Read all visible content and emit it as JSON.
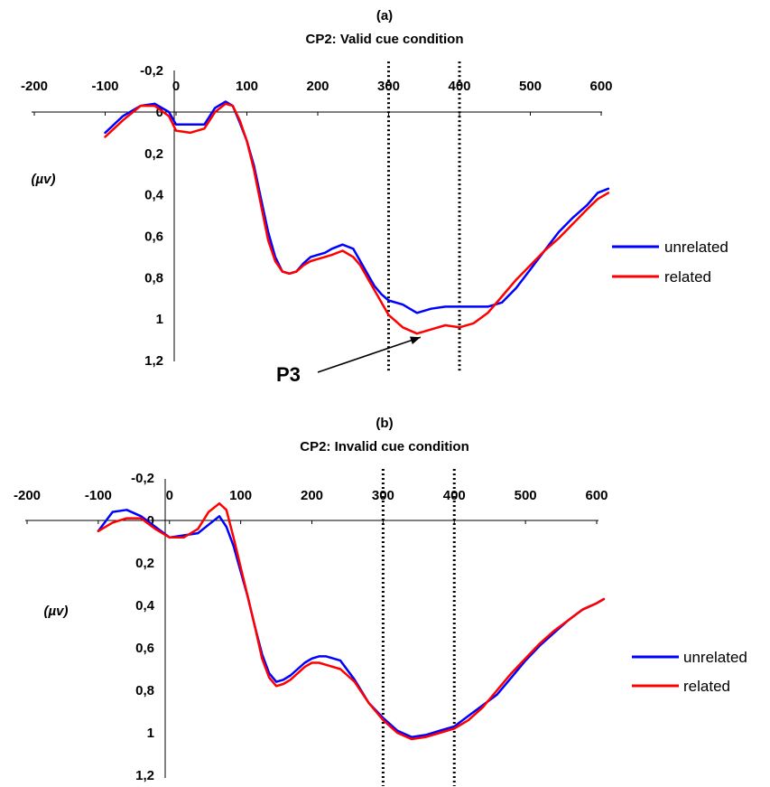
{
  "figure": {
    "label_color_unrelated": "#0000ff",
    "label_color_related": "#ff0000"
  },
  "chart_data": [
    {
      "type": "line",
      "panel_label": "(a)",
      "title": "CP2: Valid cue condition",
      "ylabel": "(µv)",
      "xlabel": "",
      "xlim": [
        -200,
        600
      ],
      "ylim": [
        1.2,
        -0.2
      ],
      "y_inverted": true,
      "x_tick_values": [
        -200,
        -100,
        0,
        100,
        200,
        300,
        400,
        500,
        600
      ],
      "x_tick_labels": [
        "-200",
        "-100",
        "0",
        "100",
        "200",
        "300",
        "400",
        "500",
        "600"
      ],
      "y_tick_values": [
        -0.2,
        0,
        0.2,
        0.4,
        0.6,
        0.8,
        1,
        1.2
      ],
      "y_tick_labels": [
        "-0,2",
        "0",
        "0,2",
        "0,4",
        "0,6",
        "0,8",
        "1",
        "1,2"
      ],
      "vertical_markers": [
        300,
        400
      ],
      "grid": false,
      "legend_position": "right",
      "annotation": {
        "text": "P3",
        "arrow_to": [
          345,
          1.07
        ]
      },
      "series": [
        {
          "name": "unrelated",
          "color": "#0000ff",
          "x": [
            -100,
            -75,
            -50,
            -30,
            -10,
            0,
            20,
            40,
            55,
            70,
            80,
            90,
            100,
            110,
            120,
            130,
            140,
            150,
            160,
            170,
            180,
            190,
            200,
            210,
            220,
            235,
            250,
            260,
            270,
            280,
            290,
            300,
            320,
            340,
            360,
            380,
            400,
            420,
            440,
            460,
            480,
            500,
            520,
            540,
            560,
            580,
            595,
            610
          ],
          "y": [
            0.1,
            0.02,
            -0.03,
            -0.04,
            0.0,
            0.06,
            0.06,
            0.06,
            -0.02,
            -0.05,
            -0.03,
            0.05,
            0.14,
            0.26,
            0.42,
            0.58,
            0.7,
            0.77,
            0.78,
            0.77,
            0.73,
            0.7,
            0.69,
            0.68,
            0.66,
            0.64,
            0.66,
            0.72,
            0.78,
            0.84,
            0.88,
            0.91,
            0.93,
            0.97,
            0.95,
            0.94,
            0.94,
            0.94,
            0.94,
            0.92,
            0.85,
            0.76,
            0.67,
            0.58,
            0.51,
            0.45,
            0.39,
            0.37
          ]
        },
        {
          "name": "related",
          "color": "#ff0000",
          "x": [
            -100,
            -75,
            -50,
            -30,
            -10,
            0,
            20,
            40,
            55,
            70,
            80,
            90,
            100,
            110,
            120,
            130,
            140,
            150,
            160,
            170,
            180,
            190,
            200,
            210,
            220,
            235,
            250,
            260,
            270,
            280,
            290,
            300,
            320,
            340,
            360,
            380,
            400,
            420,
            440,
            460,
            480,
            500,
            520,
            540,
            560,
            580,
            595,
            610
          ],
          "y": [
            0.12,
            0.04,
            -0.03,
            -0.03,
            0.02,
            0.09,
            0.1,
            0.08,
            0.0,
            -0.04,
            -0.03,
            0.04,
            0.14,
            0.28,
            0.45,
            0.62,
            0.72,
            0.77,
            0.78,
            0.77,
            0.74,
            0.72,
            0.71,
            0.7,
            0.69,
            0.67,
            0.7,
            0.74,
            0.8,
            0.86,
            0.92,
            0.98,
            1.04,
            1.07,
            1.05,
            1.03,
            1.04,
            1.02,
            0.97,
            0.89,
            0.81,
            0.74,
            0.67,
            0.61,
            0.54,
            0.47,
            0.42,
            0.39
          ]
        }
      ]
    },
    {
      "type": "line",
      "panel_label": "(b)",
      "title": "CP2: Invalid cue condition",
      "ylabel": "(µv)",
      "xlabel": "",
      "xlim": [
        -200,
        600
      ],
      "ylim": [
        1.2,
        -0.2
      ],
      "y_inverted": true,
      "x_tick_values": [
        -200,
        -100,
        0,
        100,
        200,
        300,
        400,
        500,
        600
      ],
      "x_tick_labels": [
        "-200",
        "-100",
        "0",
        "100",
        "200",
        "300",
        "400",
        "500",
        "600"
      ],
      "y_tick_values": [
        -0.2,
        0,
        0.2,
        0.4,
        0.6,
        0.8,
        1,
        1.2
      ],
      "y_tick_labels": [
        "-0,2",
        "0",
        "0,2",
        "0,4",
        "0,6",
        "0,8",
        "1",
        "1,2"
      ],
      "vertical_markers": [
        300,
        400
      ],
      "grid": false,
      "legend_position": "right",
      "series": [
        {
          "name": "unrelated",
          "color": "#0000ff",
          "x": [
            -100,
            -80,
            -60,
            -40,
            -20,
            0,
            20,
            40,
            55,
            70,
            80,
            90,
            100,
            110,
            120,
            130,
            140,
            150,
            160,
            170,
            180,
            190,
            200,
            210,
            220,
            240,
            260,
            280,
            300,
            320,
            340,
            360,
            380,
            400,
            420,
            440,
            460,
            480,
            500,
            520,
            540,
            560,
            580,
            600,
            610
          ],
          "y": [
            0.05,
            -0.04,
            -0.05,
            -0.02,
            0.03,
            0.08,
            0.07,
            0.06,
            0.02,
            -0.02,
            0.03,
            0.12,
            0.24,
            0.36,
            0.5,
            0.63,
            0.72,
            0.76,
            0.75,
            0.73,
            0.7,
            0.67,
            0.65,
            0.64,
            0.64,
            0.66,
            0.75,
            0.86,
            0.93,
            0.99,
            1.02,
            1.01,
            0.99,
            0.97,
            0.92,
            0.87,
            0.82,
            0.74,
            0.66,
            0.59,
            0.53,
            0.47,
            0.42,
            0.39,
            0.37
          ]
        },
        {
          "name": "related",
          "color": "#ff0000",
          "x": [
            -100,
            -80,
            -60,
            -40,
            -20,
            0,
            20,
            40,
            55,
            70,
            80,
            90,
            100,
            110,
            120,
            130,
            140,
            150,
            160,
            170,
            180,
            190,
            200,
            210,
            220,
            240,
            260,
            280,
            300,
            320,
            340,
            360,
            380,
            400,
            420,
            440,
            460,
            480,
            500,
            520,
            540,
            560,
            580,
            600,
            610
          ],
          "y": [
            0.05,
            0.01,
            -0.01,
            -0.01,
            0.04,
            0.08,
            0.08,
            0.04,
            -0.04,
            -0.08,
            -0.05,
            0.08,
            0.22,
            0.36,
            0.5,
            0.65,
            0.74,
            0.78,
            0.77,
            0.75,
            0.72,
            0.69,
            0.67,
            0.67,
            0.68,
            0.7,
            0.76,
            0.86,
            0.94,
            1.0,
            1.03,
            1.02,
            1.0,
            0.98,
            0.94,
            0.88,
            0.8,
            0.72,
            0.65,
            0.58,
            0.52,
            0.47,
            0.42,
            0.39,
            0.37
          ]
        }
      ]
    }
  ]
}
